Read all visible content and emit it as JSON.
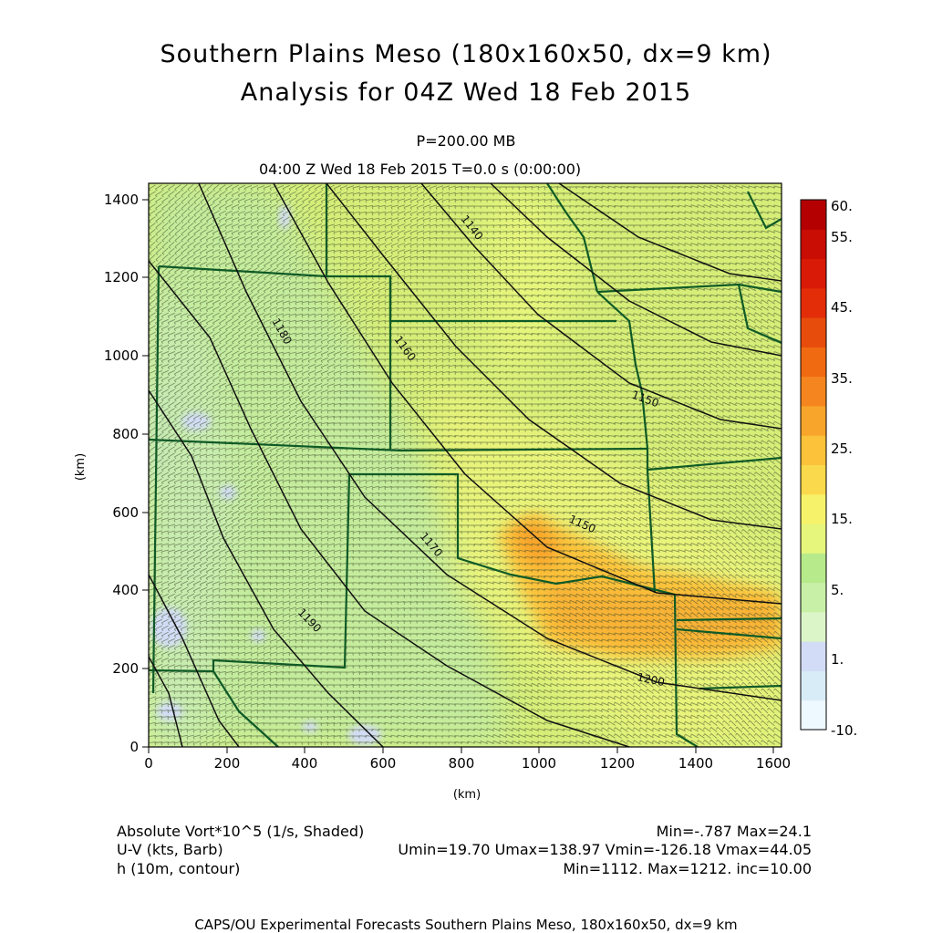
{
  "title": {
    "line1": "Southern Plains Meso (180x160x50, dx=9 km)",
    "line2": "Analysis for 04Z Wed 18 Feb 2015"
  },
  "subtitle": {
    "level": "P=200.00 MB",
    "time": "04:00 Z Wed 18 Feb 2015    T=0.0 s (0:00:00)"
  },
  "axes": {
    "x_label": "(km)",
    "y_label": "(km)",
    "x_range": [
      0,
      1620
    ],
    "y_range": [
      0,
      1440
    ],
    "x_ticks": [
      "0",
      "200",
      "400",
      "600",
      "800",
      "1000",
      "1200",
      "1400",
      "1600"
    ],
    "y_ticks": [
      "0",
      "200",
      "400",
      "600",
      "800",
      "1000",
      "1200",
      "1400"
    ]
  },
  "colorbar": {
    "labels": [
      "-10.",
      "1.",
      "5.",
      "15.",
      "25.",
      "35.",
      "45.",
      "55.",
      "60."
    ],
    "colors": [
      "#eef8ff",
      "#d8ecf8",
      "#d2dcf6",
      "#dcf5c8",
      "#c8f0a6",
      "#b6ea8a",
      "#e6f57c",
      "#f6f26a",
      "#fbd94c",
      "#fbc23a",
      "#f8a52c",
      "#f5861f",
      "#f06a12",
      "#e84c0c",
      "#e32d08",
      "#d81a06",
      "#c90c04",
      "#b40000"
    ]
  },
  "contours": {
    "labels": [
      "1140",
      "1150",
      "1160",
      "1170",
      "1180",
      "1190",
      "1200"
    ]
  },
  "legend": {
    "row1_name": "Absolute Vort*10^5 (1/s, Shaded)",
    "row1_stats": "Min=-.787 Max=24.1",
    "row2_name": "U-V (kts, Barb)",
    "row2_stats": "Umin=19.70 Umax=138.97 Vmin=-126.18 Vmax=44.05",
    "row3_name": "h (10m, contour)",
    "row3_stats": "Min=1112. Max=1212. inc=10.00"
  },
  "footer": "CAPS/OU Experimental Forecasts  Southern Plains Meso, 180x160x50, dx=9 km",
  "style": {
    "field_base": "#d6ee78",
    "field_west": "#c4ec9c",
    "warm_core": "#f8b236",
    "border_color": "#0f5a26",
    "contour_color": "#111111"
  }
}
